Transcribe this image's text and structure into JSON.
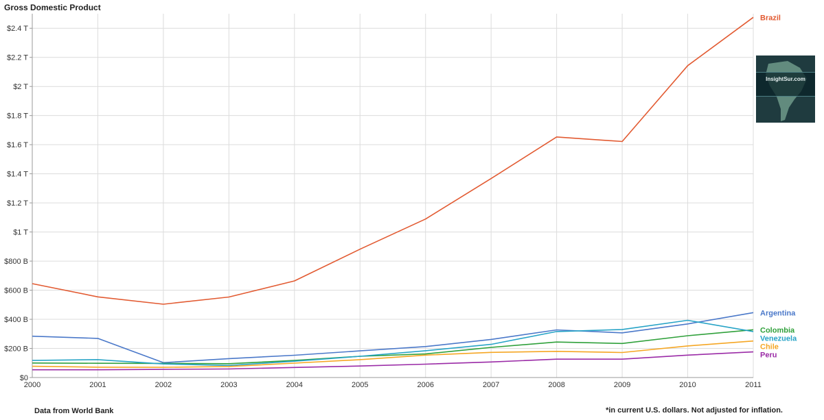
{
  "header": {
    "title": "Gross Domestic Product"
  },
  "footer": {
    "source": "Data from World Bank",
    "note": "*in current U.S. dollars. Not adjusted for inflation."
  },
  "logo": {
    "text": "InsightSur.com"
  },
  "chart_data": {
    "type": "line",
    "title": "Gross Domestic Product",
    "xlabel": "",
    "ylabel": "",
    "x": [
      2000,
      2001,
      2002,
      2003,
      2004,
      2005,
      2006,
      2007,
      2008,
      2009,
      2010,
      2011
    ],
    "xlim": [
      2000,
      2011
    ],
    "ylim": [
      0,
      2500
    ],
    "y_unit": "billions USD",
    "y_ticks": [
      0,
      200,
      400,
      600,
      800,
      1000,
      1200,
      1400,
      1600,
      1800,
      2000,
      2200,
      2400
    ],
    "y_tick_labels": [
      "$0",
      "$200 B",
      "$400 B",
      "$600 B",
      "$800 B",
      "$1 T",
      "$1.2 T",
      "$1.4 T",
      "$1.6 T",
      "$1.8 T",
      "$2 T",
      "$2.2 T",
      "$2.4 T"
    ],
    "grid": true,
    "legend": "right",
    "series": [
      {
        "name": "Brazil",
        "color": "#e25a31",
        "values": [
          645,
          554,
          504,
          553,
          664,
          882,
          1089,
          1367,
          1653,
          1622,
          2143,
          2475
        ]
      },
      {
        "name": "Argentina",
        "color": "#4a78c9",
        "values": [
          284,
          269,
          102,
          130,
          153,
          183,
          213,
          262,
          327,
          307,
          368,
          446
        ]
      },
      {
        "name": "Colombia",
        "color": "#2fa03a",
        "values": [
          100,
          98,
          97,
          95,
          117,
          146,
          162,
          207,
          244,
          234,
          287,
          328
        ]
      },
      {
        "name": "Venezuela",
        "color": "#26a3c6",
        "values": [
          117,
          123,
          93,
          83,
          112,
          146,
          184,
          228,
          316,
          330,
          393,
          316
        ]
      },
      {
        "name": "Chile",
        "color": "#f5a623",
        "values": [
          77,
          71,
          70,
          76,
          99,
          123,
          154,
          173,
          180,
          172,
          217,
          251
        ]
      },
      {
        "name": "Peru",
        "color": "#9a2aa6",
        "values": [
          53,
          53,
          56,
          59,
          69,
          79,
          92,
          107,
          126,
          126,
          154,
          176
        ]
      }
    ]
  }
}
